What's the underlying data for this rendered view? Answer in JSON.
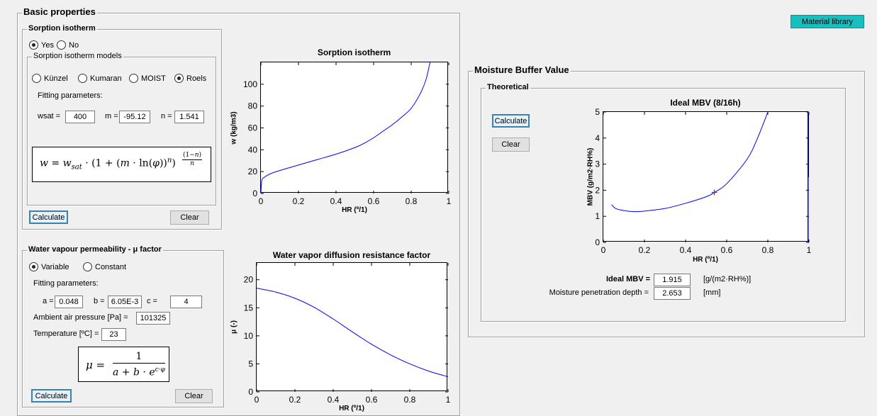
{
  "basic": {
    "title": "Basic properties",
    "material_library": "Material library"
  },
  "sorption": {
    "title": "Sorption isotherm",
    "yes": "Yes",
    "no": "No",
    "models_title": "Sorption isotherm models",
    "models": [
      "Künzel",
      "Kumaran",
      "MOIST",
      "Roels"
    ],
    "fitting": "Fitting parameters:",
    "wsat_label": "wsat =",
    "wsat": "400",
    "m_label": "m =",
    "m": "-95.12",
    "n_label": "n =",
    "n": "1.541",
    "calculate": "Calculate",
    "clear": "Clear"
  },
  "vapour": {
    "title": "Water vapour permeability - μ factor",
    "variable": "Variable",
    "constant": "Constant",
    "fitting": "Fitting parameters:",
    "a_label": "a =",
    "a": "0.048",
    "b_label": "b =",
    "b": "6.05E-3",
    "c_label": "c =",
    "c": "4",
    "pressure_label": "Ambient air pressure [Pa] =",
    "pressure": "101325",
    "temp_label": "Temperature [ºC] =",
    "temp": "23",
    "calculate": "Calculate",
    "clear": "Clear"
  },
  "mbv": {
    "title": "Moisture Buffer Value",
    "theoretical": "Theoretical",
    "calculate": "Calculate",
    "clear": "Clear",
    "ideal_label": "Ideal MBV =",
    "ideal": "1.915",
    "ideal_unit": "[g/(m2·RH%)]",
    "depth_label": "Moisture penetration depth =",
    "depth": "2.653",
    "depth_unit": "[mm]"
  },
  "colors": {
    "line": "#0000ff",
    "marker": "#ff0000",
    "accent": "#19bfbf"
  },
  "chart_data": [
    {
      "type": "line",
      "title": "Sorption isotherm",
      "xlabel": "HR (º/1)",
      "ylabel": "w (kg/m3)",
      "xlim": [
        0,
        1
      ],
      "ylim": [
        0,
        120
      ],
      "xticks": [
        "0",
        "0.2",
        "0.4",
        "0.6",
        "0.8",
        "1"
      ],
      "yticks": [
        "0",
        "20",
        "40",
        "60",
        "80",
        "100"
      ],
      "x": [
        0.0,
        0.005,
        0.02,
        0.05,
        0.1,
        0.2,
        0.3,
        0.4,
        0.5,
        0.55,
        0.6,
        0.65,
        0.7,
        0.75,
        0.8,
        0.85,
        0.88,
        0.9
      ],
      "y": [
        0,
        12,
        15,
        18,
        21,
        26,
        31,
        36,
        42,
        46,
        51,
        57,
        63,
        70,
        78,
        92,
        105,
        120
      ]
    },
    {
      "type": "line",
      "title": "Water vapor diffusion resistance factor",
      "xlabel": "HR (º/1)",
      "ylabel": "μ (-)",
      "xlim": [
        0,
        1
      ],
      "ylim": [
        0,
        23
      ],
      "xticks": [
        "0",
        "0.2",
        "0.4",
        "0.6",
        "0.8",
        "1"
      ],
      "yticks": [
        "0",
        "5",
        "10",
        "15",
        "20"
      ],
      "x": [
        0,
        0.1,
        0.2,
        0.3,
        0.4,
        0.5,
        0.6,
        0.7,
        0.8,
        0.9,
        1.0
      ],
      "y": [
        18.5,
        17.8,
        16.7,
        15.1,
        13.0,
        10.7,
        8.5,
        6.6,
        5.0,
        3.7,
        2.7
      ]
    },
    {
      "type": "line",
      "title": "Ideal MBV (8/16h)",
      "xlabel": "HR (º/1)",
      "ylabel": "MBV (g/m2·RH%)",
      "xlim": [
        0,
        1
      ],
      "ylim": [
        0,
        5
      ],
      "xticks": [
        "0",
        "0.2",
        "0.4",
        "0.6",
        "0.8",
        "1"
      ],
      "yticks": [
        "0",
        "1",
        "2",
        "3",
        "4",
        "5"
      ],
      "x": [
        0.04,
        0.06,
        0.1,
        0.15,
        0.2,
        0.3,
        0.4,
        0.5,
        0.54,
        0.6,
        0.7,
        0.75,
        0.8
      ],
      "y": [
        1.45,
        1.3,
        1.22,
        1.18,
        1.2,
        1.3,
        1.5,
        1.75,
        1.915,
        2.25,
        3.2,
        4.0,
        5.0
      ],
      "marker": {
        "x": 0.54,
        "y": 1.915
      }
    }
  ]
}
